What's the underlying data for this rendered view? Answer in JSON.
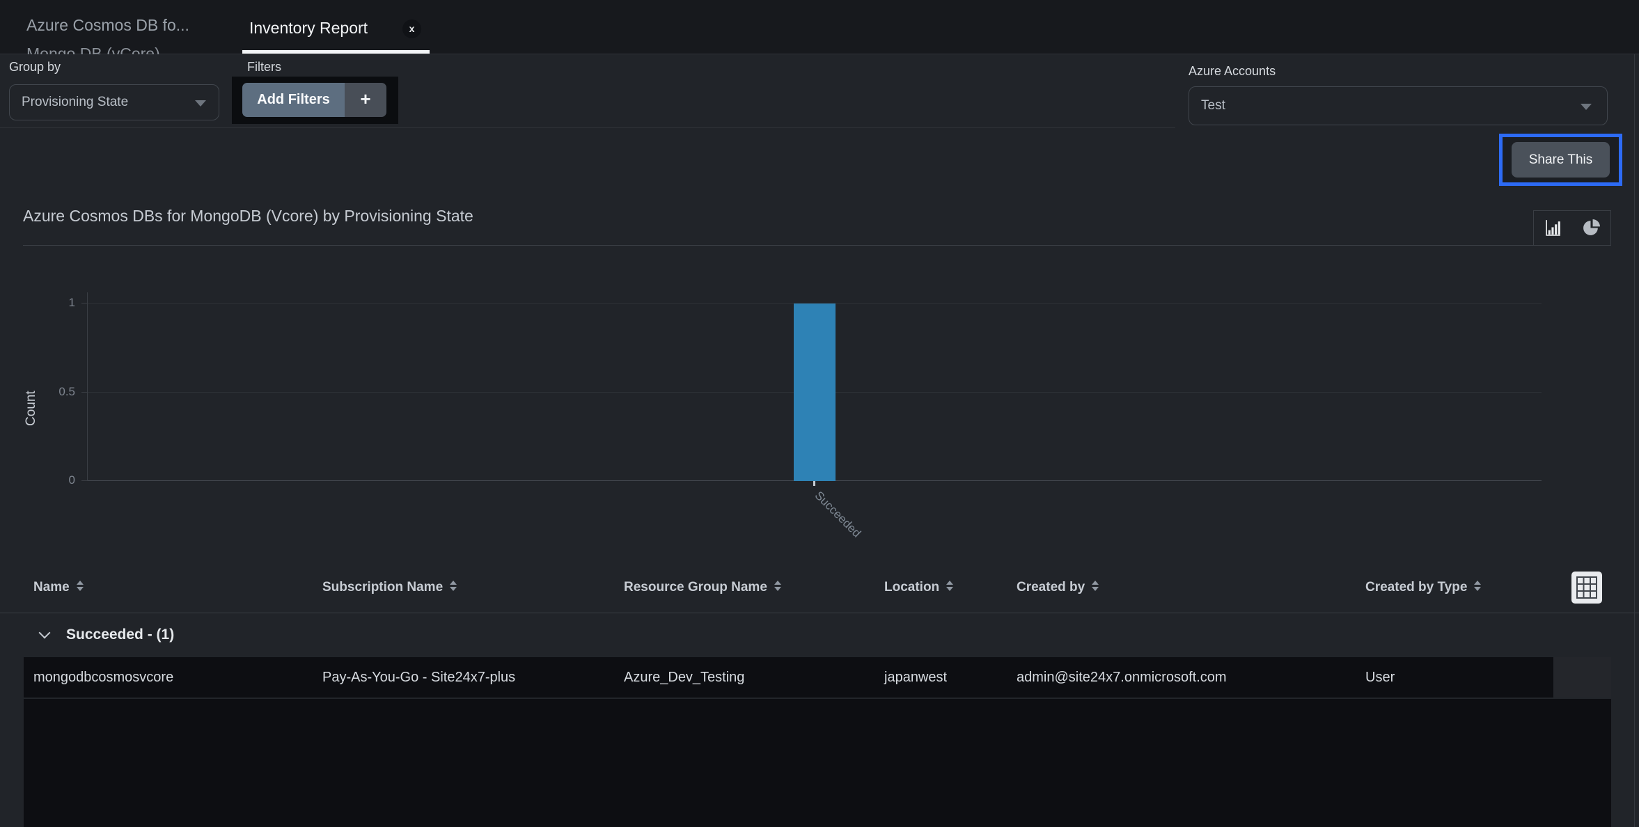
{
  "colors": {
    "page_bg": "#212429",
    "tabbar_bg": "#17191D",
    "accent_blue": "#2D6BF5",
    "bar_blue": "#2E82B5",
    "panel_black": "#0D0E12",
    "add_filters_bg": "#5D6E80"
  },
  "tabs": {
    "inactive": {
      "label": "Azure Cosmos DB fo...",
      "clipped_line": "Mongo DB (vCore)"
    },
    "active": {
      "label": "Inventory Report",
      "close_glyph": "x"
    }
  },
  "controls": {
    "group_by": {
      "label": "Group by",
      "value": "Provisioning State"
    },
    "filters": {
      "label": "Filters",
      "add_button": "Add Filters",
      "plus_glyph": "+"
    },
    "azure_accounts": {
      "label": "Azure Accounts",
      "value": "Test"
    },
    "share_button": "Share This"
  },
  "chart": {
    "title": "Azure Cosmos DBs for MongoDB (Vcore) by Provisioning State"
  },
  "chart_data": {
    "type": "bar",
    "title": "Azure Cosmos DBs for MongoDB (Vcore) by Provisioning State",
    "categories": [
      "Succeeded"
    ],
    "values": [
      1
    ],
    "xlabel": "",
    "ylabel": "Count",
    "ylim": [
      0,
      1
    ],
    "yticks": [
      0,
      0.5,
      1
    ],
    "grid": true,
    "legend": false,
    "bar_color": "#2E82B5"
  },
  "table": {
    "columns": [
      {
        "label": "Name"
      },
      {
        "label": "Subscription Name"
      },
      {
        "label": "Resource Group Name"
      },
      {
        "label": "Location"
      },
      {
        "label": "Created by"
      },
      {
        "label": "Created by Type"
      }
    ],
    "group": {
      "label": "Succeeded - (1)"
    },
    "rows": [
      [
        "mongodbcosmosvcore",
        "Pay-As-You-Go - Site24x7-plus",
        "Azure_Dev_Testing",
        "japanwest",
        "admin@site24x7.onmicrosoft.com",
        "User"
      ]
    ]
  }
}
